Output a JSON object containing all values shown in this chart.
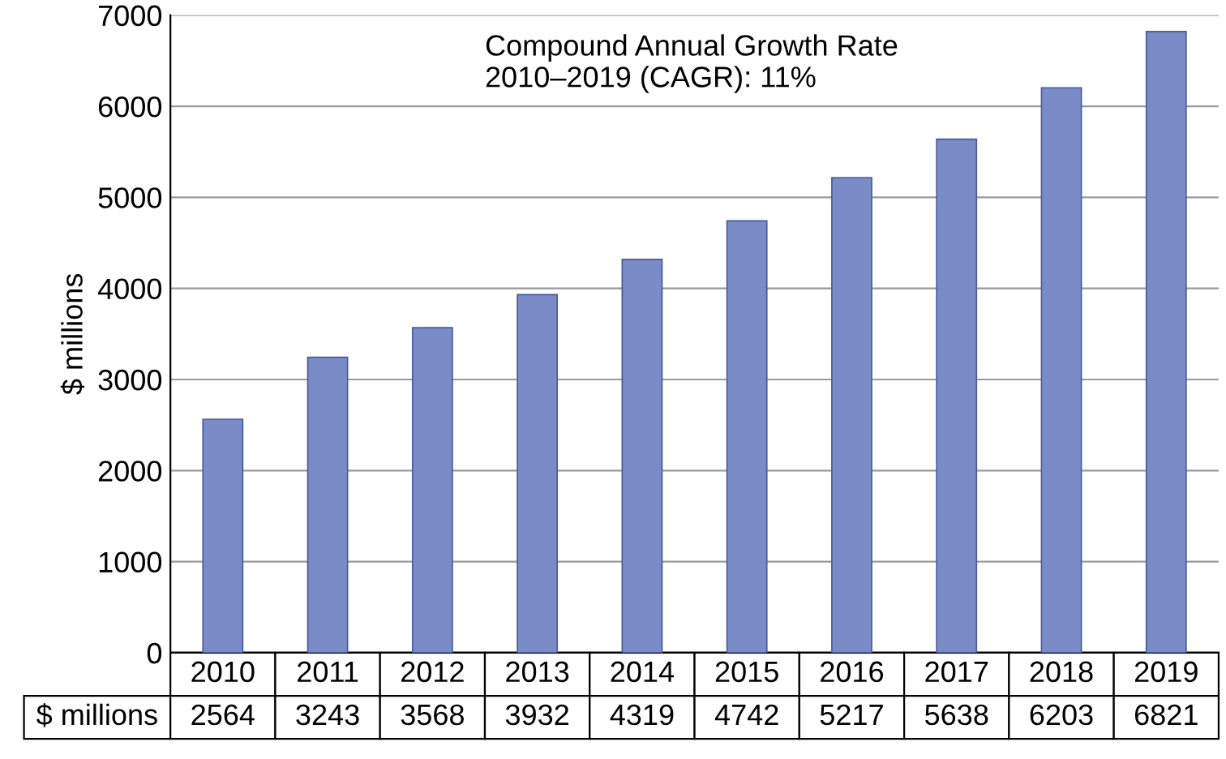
{
  "chart_data": {
    "type": "bar",
    "ylabel": "$ millions",
    "annotations": [
      "Compound Annual Growth Rate\n2010–2019 (CAGR): 11%"
    ],
    "categories": [
      "2010",
      "2011",
      "2012",
      "2013",
      "2014",
      "2015",
      "2016",
      "2017",
      "2018",
      "2019"
    ],
    "values": [
      2564,
      3243,
      3568,
      3932,
      4319,
      4742,
      5217,
      5638,
      6203,
      6821
    ],
    "color": "#7a8cc8",
    "ylim": [
      0,
      7000
    ],
    "yticks": [
      0,
      1000,
      2000,
      3000,
      4000,
      5000,
      6000,
      7000
    ],
    "grid": "y",
    "data_labels": true
  }
}
